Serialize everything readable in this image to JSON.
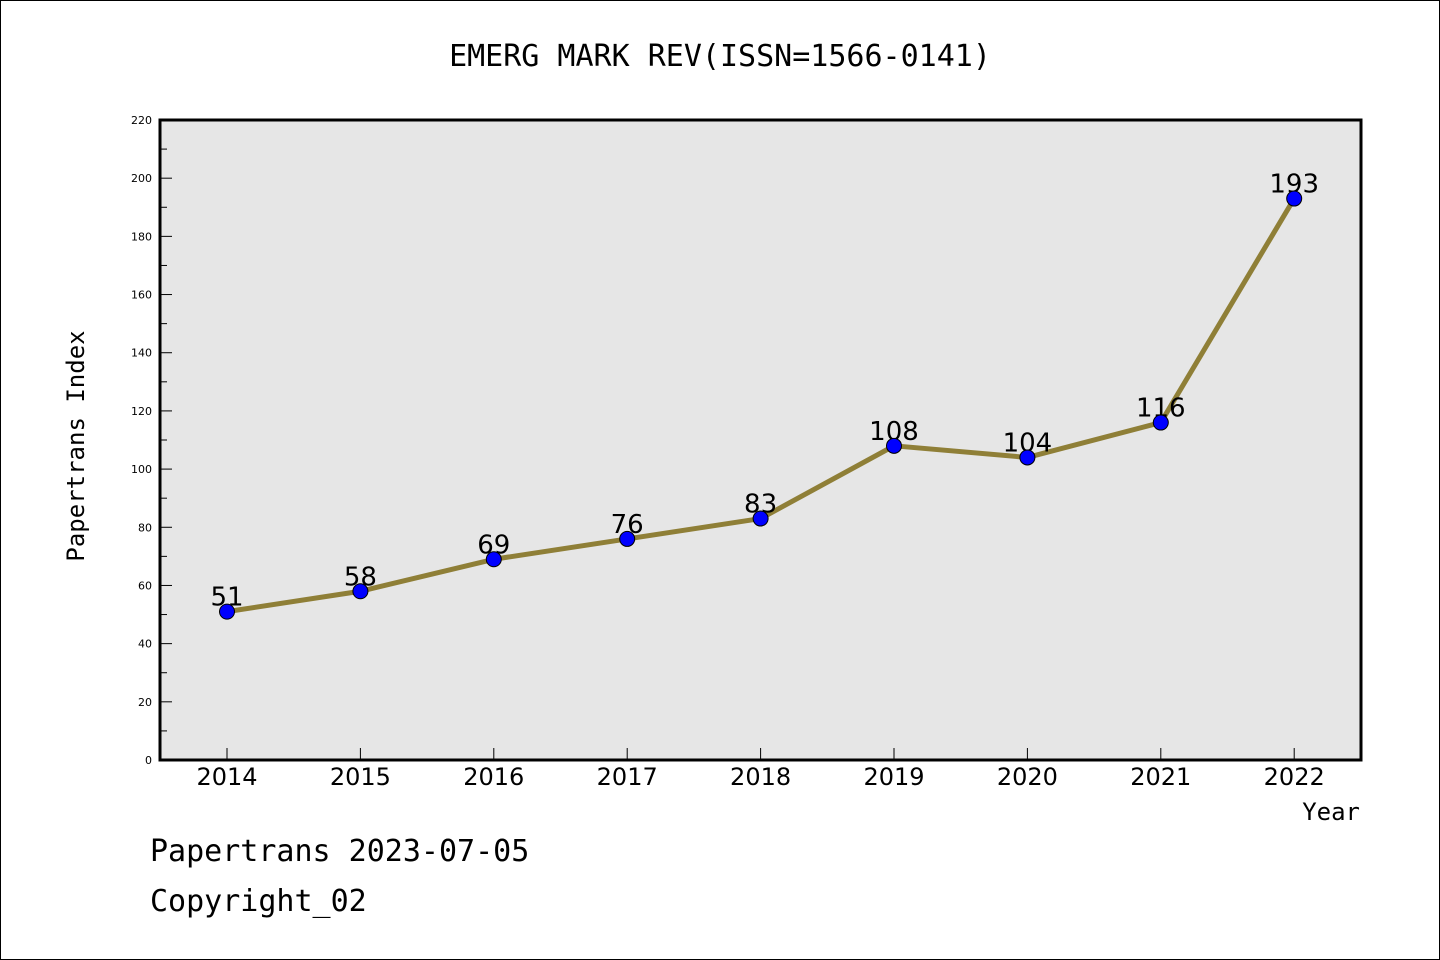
{
  "chart_data": {
    "type": "line",
    "title": "EMERG MARK REV(ISSN=1566-0141)",
    "xlabel": "Year",
    "ylabel": "Papertrans Index",
    "categories": [
      "2014",
      "2015",
      "2016",
      "2017",
      "2018",
      "2019",
      "2020",
      "2021",
      "2022"
    ],
    "values": [
      51,
      58,
      69,
      76,
      83,
      108,
      104,
      116,
      193
    ],
    "data_labels": [
      "51",
      "58",
      "69",
      "76",
      "83",
      "108",
      "104",
      "116",
      "193"
    ],
    "ylim": [
      0,
      220
    ],
    "yticks": [
      0,
      20,
      40,
      60,
      80,
      100,
      120,
      140,
      160,
      180,
      200,
      220
    ],
    "grid": false,
    "colors": {
      "line": "#8f7f37",
      "marker": "#0000ff",
      "plot_background": "#e6e6e6"
    }
  },
  "footer": {
    "line1": "Papertrans 2023-07-05",
    "line2": "Copyright_02"
  }
}
